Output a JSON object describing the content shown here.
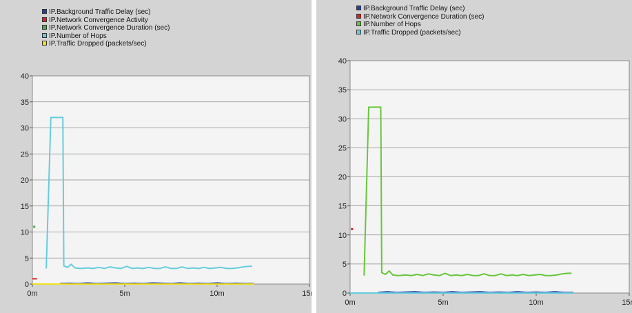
{
  "chart_data": [
    {
      "type": "line",
      "title": "",
      "xlabel": "",
      "ylabel": "",
      "xlim": [
        0,
        15
      ],
      "ylim": [
        0,
        40
      ],
      "x_ticks": [
        0,
        5,
        10,
        15
      ],
      "x_tick_labels": [
        "0m",
        "5m",
        "10m",
        "15m"
      ],
      "y_ticks": [
        0,
        5,
        10,
        15,
        20,
        25,
        30,
        35,
        40
      ],
      "y_tick_labels": [
        "0",
        "5",
        "10",
        "15",
        "20",
        "25",
        "30",
        "35",
        "40"
      ],
      "grid": true,
      "legend_position": "top-left",
      "series": [
        {
          "name": "IP.Background Traffic Delay (sec)",
          "color": "#1f3fa8",
          "x": [
            1.5,
            2,
            2.5,
            3,
            3.5,
            4,
            4.5,
            5,
            5.5,
            6,
            6.5,
            7,
            7.5,
            8,
            8.5,
            9,
            9.5,
            10,
            10.5,
            11,
            11.5,
            12
          ],
          "y": [
            0.1,
            0.15,
            0.1,
            0.2,
            0.1,
            0.15,
            0.2,
            0.1,
            0.15,
            0.1,
            0.2,
            0.15,
            0.1,
            0.2,
            0.1,
            0.15,
            0.1,
            0.2,
            0.1,
            0.15,
            0.1,
            0.1
          ]
        },
        {
          "name": "IP.Network Convergence Activity",
          "color": "#e02020",
          "x": [
            0,
            0.25
          ],
          "y": [
            1,
            1
          ]
        },
        {
          "name": "IP.Network Convergence Duration (sec)",
          "color": "#3cb043",
          "x": [
            0.1
          ],
          "y": [
            11
          ]
        },
        {
          "name": "IP.Number of Hops",
          "color": "#66ccdd",
          "x": [
            0.75,
            1.0,
            1.5,
            1.65,
            1.7,
            1.9,
            2.1,
            2.3,
            2.6,
            3.0,
            3.3,
            3.6,
            3.9,
            4.2,
            4.5,
            4.8,
            5.1,
            5.4,
            5.7,
            6.0,
            6.3,
            6.6,
            6.9,
            7.2,
            7.5,
            7.8,
            8.1,
            8.4,
            8.7,
            9.0,
            9.3,
            9.6,
            9.9,
            10.2,
            10.5,
            10.8,
            11.1,
            11.4,
            11.7,
            11.9
          ],
          "y": [
            3,
            32,
            32,
            32,
            3.5,
            3.2,
            3.8,
            3.1,
            3.0,
            3.1,
            3.0,
            3.2,
            3.0,
            3.3,
            3.1,
            3.0,
            3.4,
            3.0,
            3.1,
            3.0,
            3.2,
            3.0,
            3.0,
            3.3,
            3.0,
            3.0,
            3.3,
            3.0,
            3.1,
            3.0,
            3.2,
            3.0,
            3.1,
            3.2,
            3.0,
            3.0,
            3.1,
            3.3,
            3.4,
            3.4
          ]
        },
        {
          "name": "IP.Traffic Dropped (packets/sec)",
          "color": "#f0e020",
          "x": [
            0,
            12
          ],
          "y": [
            0,
            0
          ]
        }
      ]
    },
    {
      "type": "line",
      "title": "",
      "xlabel": "",
      "ylabel": "",
      "xlim": [
        0,
        15
      ],
      "ylim": [
        0,
        40
      ],
      "x_ticks": [
        0,
        5,
        10,
        15
      ],
      "x_tick_labels": [
        "0m",
        "5m",
        "10m",
        "15m"
      ],
      "y_ticks": [
        0,
        5,
        10,
        15,
        20,
        25,
        30,
        35,
        40
      ],
      "y_tick_labels": [
        "0",
        "5",
        "10",
        "15",
        "20",
        "25",
        "30",
        "35",
        "40"
      ],
      "grid": true,
      "legend_position": "top-left",
      "series": [
        {
          "name": "IP.Background Traffic Delay (sec)",
          "color": "#1f3fa8",
          "x": [
            1.5,
            2,
            2.5,
            3,
            3.5,
            4,
            4.5,
            5,
            5.5,
            6,
            6.5,
            7,
            7.5,
            8,
            8.5,
            9,
            9.5,
            10,
            10.5,
            11,
            11.5,
            12
          ],
          "y": [
            0.1,
            0.2,
            0.1,
            0.15,
            0.2,
            0.1,
            0.15,
            0.1,
            0.2,
            0.1,
            0.15,
            0.2,
            0.1,
            0.15,
            0.1,
            0.2,
            0.1,
            0.15,
            0.1,
            0.2,
            0.1,
            0.1
          ]
        },
        {
          "name": "IP.Network Convergence Duration (sec)",
          "color": "#e02020",
          "x": [
            0.1
          ],
          "y": [
            11
          ]
        },
        {
          "name": "IP.Number of Hops",
          "color": "#66c63a",
          "x": [
            0.75,
            1.0,
            1.5,
            1.65,
            1.7,
            1.9,
            2.1,
            2.3,
            2.6,
            3.0,
            3.3,
            3.6,
            3.9,
            4.2,
            4.5,
            4.8,
            5.1,
            5.4,
            5.7,
            6.0,
            6.3,
            6.6,
            6.9,
            7.2,
            7.5,
            7.8,
            8.1,
            8.4,
            8.7,
            9.0,
            9.3,
            9.6,
            9.9,
            10.2,
            10.5,
            10.8,
            11.1,
            11.4,
            11.7,
            11.9
          ],
          "y": [
            3,
            32,
            32,
            32,
            3.5,
            3.2,
            3.8,
            3.1,
            3.0,
            3.1,
            3.0,
            3.2,
            3.0,
            3.3,
            3.1,
            3.0,
            3.4,
            3.0,
            3.1,
            3.0,
            3.2,
            3.0,
            3.0,
            3.3,
            3.0,
            3.0,
            3.3,
            3.0,
            3.1,
            3.0,
            3.2,
            3.0,
            3.1,
            3.2,
            3.0,
            3.0,
            3.1,
            3.3,
            3.4,
            3.4
          ]
        },
        {
          "name": "IP.Traffic Dropped (packets/sec)",
          "color": "#66ccdd",
          "x": [
            0,
            12
          ],
          "y": [
            0,
            0
          ]
        }
      ]
    }
  ]
}
